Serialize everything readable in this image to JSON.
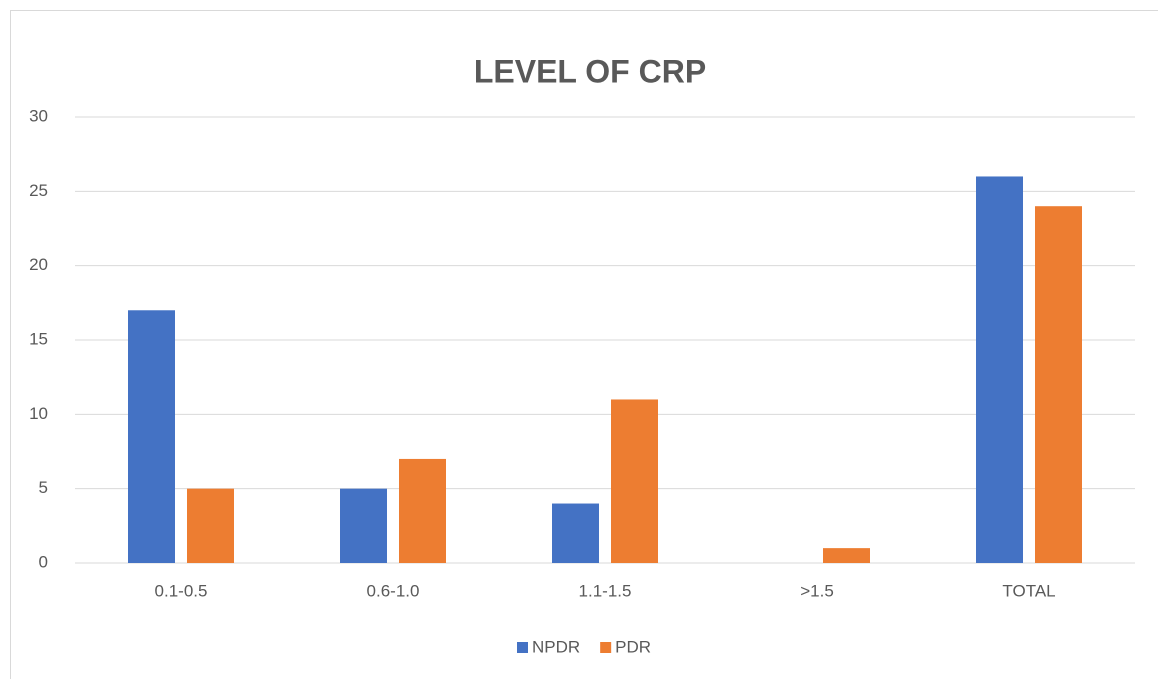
{
  "chart_data": {
    "type": "bar",
    "title": "LEVEL OF CRP",
    "categories": [
      "0.1-0.5",
      "0.6-1.0",
      "1.1-1.5",
      ">1.5",
      "TOTAL"
    ],
    "series": [
      {
        "name": "NPDR",
        "color": "#4472c4",
        "values": [
          17,
          5,
          4,
          0,
          26
        ]
      },
      {
        "name": "PDR",
        "color": "#ed7d31",
        "values": [
          5,
          7,
          11,
          1,
          24
        ]
      }
    ],
    "ylim": [
      0,
      30
    ],
    "yticks": [
      0,
      5,
      10,
      15,
      20,
      25,
      30
    ],
    "grid": true,
    "legend": "bottom"
  }
}
